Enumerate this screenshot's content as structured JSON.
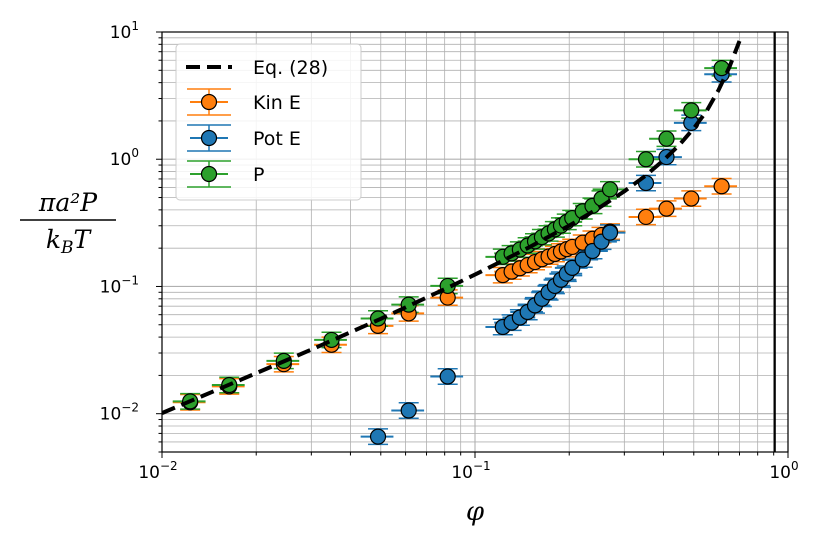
{
  "chart_data": {
    "type": "scatter",
    "xscale": "log",
    "yscale": "log",
    "xlim": [
      0.01,
      1
    ],
    "ylim": [
      0.005,
      10
    ],
    "xlabel": "φ",
    "ylabel_num": "πa²P",
    "ylabel_den": "k_BT",
    "xtick_labels": [
      {
        "value": 0.01,
        "base": "10",
        "exp": "−2"
      },
      {
        "value": 0.1,
        "base": "10",
        "exp": "−1"
      },
      {
        "value": 1,
        "base": "10",
        "exp": "0"
      }
    ],
    "ytick_labels": [
      {
        "value": 0.01,
        "base": "10",
        "exp": "−2"
      },
      {
        "value": 0.1,
        "base": "10",
        "exp": "−1"
      },
      {
        "value": 1,
        "base": "10",
        "exp": "0"
      },
      {
        "value": 10,
        "base": "10",
        "exp": "1"
      }
    ],
    "grid": true,
    "legend_position": "top-left",
    "vline_x": 0.9069,
    "curve": {
      "name": "Eq. (28)",
      "color": "#000000",
      "x": [
        0.01,
        0.015,
        0.02,
        0.03,
        0.05,
        0.08,
        0.1,
        0.12,
        0.15,
        0.2,
        0.25,
        0.3,
        0.35,
        0.4,
        0.45,
        0.5,
        0.55,
        0.6,
        0.65,
        0.7
      ],
      "y": [
        0.0101,
        0.0154,
        0.0208,
        0.0319,
        0.0557,
        0.0951,
        0.124,
        0.155,
        0.205,
        0.301,
        0.417,
        0.56,
        0.74,
        0.98,
        1.3,
        1.75,
        2.4,
        3.5,
        5.3,
        8.5
      ]
    },
    "series": [
      {
        "name": "Kin E",
        "color": "#ff7f0e",
        "x": [
          0.0123,
          0.0164,
          0.0245,
          0.0348,
          0.049,
          0.0614,
          0.0818,
          0.1227,
          0.1309,
          0.1391,
          0.1473,
          0.1555,
          0.1636,
          0.1718,
          0.18,
          0.1882,
          0.1964,
          0.2045,
          0.2209,
          0.2373,
          0.2536,
          0.27,
          0.3518,
          0.4091,
          0.4909,
          0.6136
        ],
        "y": [
          0.0123,
          0.0164,
          0.0245,
          0.0348,
          0.049,
          0.0614,
          0.0818,
          0.1227,
          0.1309,
          0.1391,
          0.1473,
          0.1555,
          0.1636,
          0.1718,
          0.18,
          0.1882,
          0.1964,
          0.2045,
          0.2209,
          0.2373,
          0.2536,
          0.27,
          0.3518,
          0.4091,
          0.4909,
          0.6136
        ]
      },
      {
        "name": "Pot E",
        "color": "#1f77b4",
        "x": [
          0.049,
          0.0614,
          0.0818,
          0.1227,
          0.1309,
          0.1391,
          0.1473,
          0.1555,
          0.1636,
          0.1718,
          0.18,
          0.1882,
          0.1964,
          0.2045,
          0.2209,
          0.2373,
          0.2536,
          0.27,
          0.3518,
          0.4091,
          0.4909,
          0.6136
        ],
        "y": [
          0.0066,
          0.0106,
          0.0196,
          0.048,
          0.052,
          0.057,
          0.063,
          0.071,
          0.08,
          0.09,
          0.101,
          0.113,
          0.126,
          0.14,
          0.163,
          0.19,
          0.225,
          0.265,
          0.65,
          1.04,
          1.93,
          4.65
        ]
      },
      {
        "name": "P",
        "color": "#2ca02c",
        "x": [
          0.0123,
          0.0164,
          0.0245,
          0.0348,
          0.049,
          0.0614,
          0.0818,
          0.1227,
          0.1309,
          0.1391,
          0.1473,
          0.1555,
          0.1636,
          0.1718,
          0.18,
          0.1882,
          0.1964,
          0.2045,
          0.2209,
          0.2373,
          0.2536,
          0.27,
          0.3518,
          0.4091,
          0.4909,
          0.6136
        ],
        "y": [
          0.0125,
          0.0168,
          0.026,
          0.038,
          0.056,
          0.072,
          0.101,
          0.171,
          0.182,
          0.195,
          0.21,
          0.226,
          0.244,
          0.261,
          0.281,
          0.301,
          0.322,
          0.345,
          0.39,
          0.43,
          0.49,
          0.58,
          1.0,
          1.45,
          2.42,
          5.2
        ]
      }
    ]
  }
}
